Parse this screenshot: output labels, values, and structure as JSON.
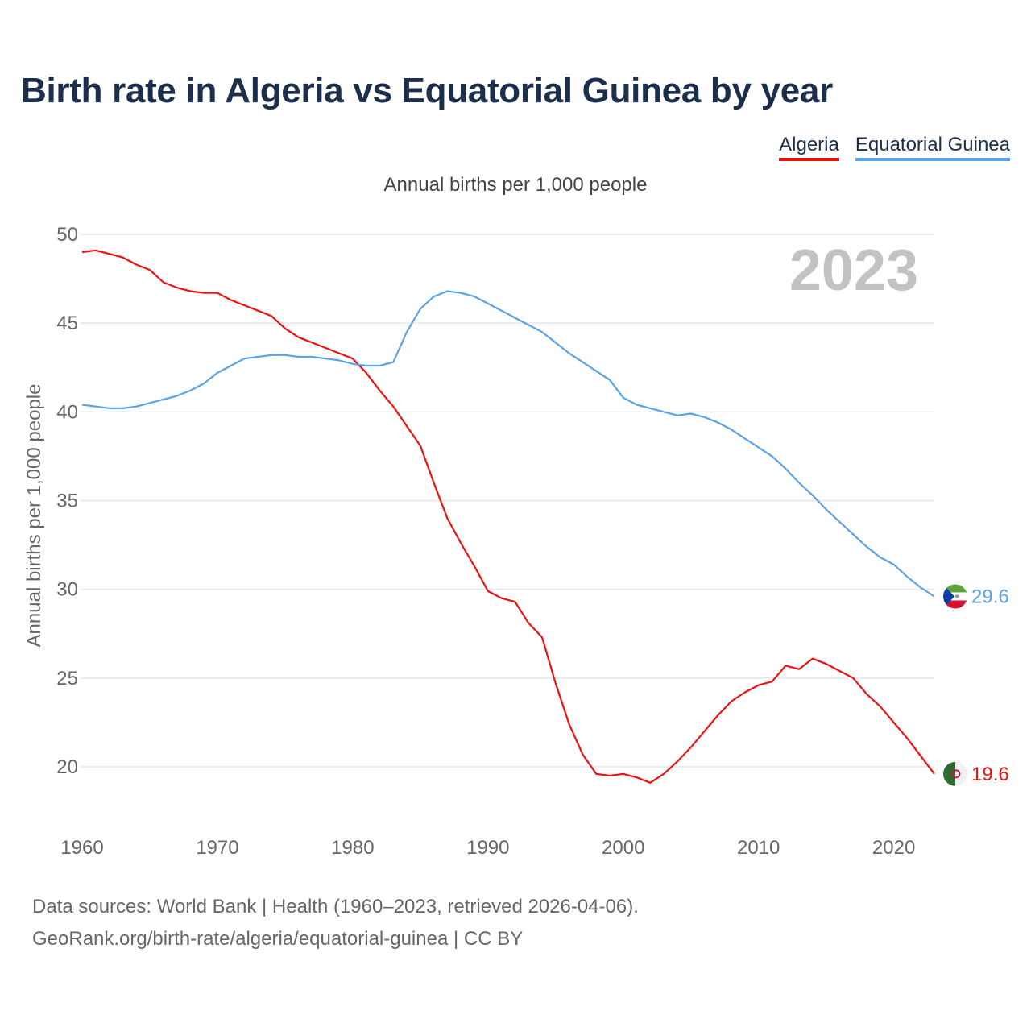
{
  "header": {
    "title": "Birth rate in Algeria vs Equatorial Guinea by year",
    "subtitle": "Annual births per 1,000 people"
  },
  "legend": [
    {
      "label": "Algeria",
      "color": "#ee1111"
    },
    {
      "label": "Equatorial Guinea",
      "color": "#5ba3e6"
    }
  ],
  "footer": {
    "source_line": "Data sources: World Bank | Health (1960–2023, retrieved 2026-04-06).",
    "credit_line": "GeoRank.org/birth-rate/algeria/equatorial-guinea | CC BY"
  },
  "chart_data": {
    "type": "line",
    "title": "Birth rate in Algeria vs Equatorial Guinea by year",
    "ylabel": "Annual births per 1,000 people",
    "xlabel": "",
    "year_label": "2023",
    "xlim": [
      1960,
      2023
    ],
    "ylim": [
      17,
      50
    ],
    "x_ticks": [
      1960,
      1970,
      1980,
      1990,
      2000,
      2010,
      2020
    ],
    "y_ticks": [
      20,
      25,
      30,
      35,
      40,
      45,
      50
    ],
    "grid": true,
    "x": [
      1960,
      1961,
      1962,
      1963,
      1964,
      1965,
      1966,
      1967,
      1968,
      1969,
      1970,
      1971,
      1972,
      1973,
      1974,
      1975,
      1976,
      1977,
      1978,
      1979,
      1980,
      1981,
      1982,
      1983,
      1984,
      1985,
      1986,
      1987,
      1988,
      1989,
      1990,
      1991,
      1992,
      1993,
      1994,
      1995,
      1996,
      1997,
      1998,
      1999,
      2000,
      2001,
      2002,
      2003,
      2004,
      2005,
      2006,
      2007,
      2008,
      2009,
      2010,
      2011,
      2012,
      2013,
      2014,
      2015,
      2016,
      2017,
      2018,
      2019,
      2020,
      2021,
      2022,
      2023
    ],
    "series": [
      {
        "name": "Algeria",
        "color": "#ee1111",
        "end_label": "19.6",
        "values": [
          49.0,
          49.1,
          48.9,
          48.7,
          48.3,
          48.0,
          47.3,
          47.0,
          46.8,
          46.7,
          46.7,
          46.3,
          46.0,
          45.7,
          45.4,
          44.7,
          44.2,
          43.9,
          43.6,
          43.3,
          43.0,
          42.2,
          41.2,
          40.3,
          39.2,
          38.1,
          36.0,
          34.0,
          32.6,
          31.3,
          29.9,
          29.5,
          29.3,
          28.1,
          27.3,
          24.7,
          22.4,
          20.7,
          19.6,
          19.5,
          19.6,
          19.4,
          19.1,
          19.6,
          20.3,
          21.1,
          22.0,
          22.9,
          23.7,
          24.2,
          24.6,
          24.8,
          25.7,
          25.5,
          26.1,
          25.8,
          25.4,
          25.0,
          24.1,
          23.4,
          22.5,
          21.6,
          20.6,
          19.6
        ]
      },
      {
        "name": "Equatorial Guinea",
        "color": "#5ba3e6",
        "end_label": "29.6",
        "values": [
          40.4,
          40.3,
          40.2,
          40.2,
          40.3,
          40.5,
          40.7,
          40.9,
          41.2,
          41.6,
          42.2,
          42.6,
          43.0,
          43.1,
          43.2,
          43.2,
          43.1,
          43.1,
          43.0,
          42.9,
          42.7,
          42.6,
          42.6,
          42.8,
          44.5,
          45.8,
          46.5,
          46.8,
          46.7,
          46.5,
          46.1,
          45.7,
          45.3,
          44.9,
          44.5,
          43.9,
          43.3,
          42.8,
          42.3,
          41.8,
          40.8,
          40.4,
          40.2,
          40.0,
          39.8,
          39.9,
          39.7,
          39.4,
          39.0,
          38.5,
          38.0,
          37.5,
          36.8,
          36.0,
          35.3,
          34.5,
          33.8,
          33.1,
          32.4,
          31.8,
          31.4,
          30.7,
          30.1,
          29.6
        ]
      }
    ]
  }
}
